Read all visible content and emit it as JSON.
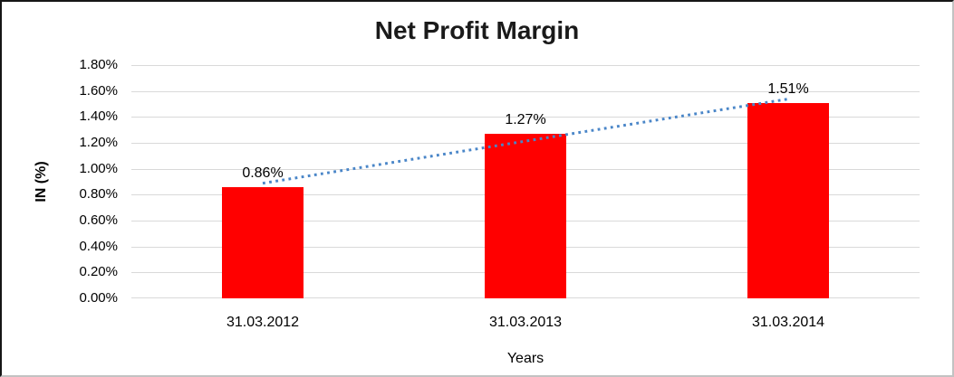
{
  "chart_data": {
    "type": "bar",
    "title": "Net Profit Margin",
    "categories": [
      "31.03.2012",
      "31.03.2013",
      "31.03.2014"
    ],
    "values": [
      0.86,
      1.27,
      1.51
    ],
    "data_labels": [
      "0.86%",
      "1.27%",
      "1.51%"
    ],
    "xlabel": "Years",
    "ylabel": "IN (%)",
    "ylim": [
      0,
      1.8
    ],
    "ytick_step": 0.2,
    "ytick_labels": [
      "1.80%",
      "1.60%",
      "1.40%",
      "1.20%",
      "1.00%",
      "0.80%",
      "0.60%",
      "0.40%",
      "0.20%",
      "0.00%"
    ],
    "grid": true,
    "legend": "none",
    "bar_color": "#ff0000",
    "trendline": {
      "type": "linear",
      "style": "dotted",
      "color": "#4a86c8"
    },
    "colors": {
      "gridline": "#d9d9d9",
      "title_text": "#1a1a1a",
      "axis_text": "#000000",
      "frame_dark": "#161616",
      "frame_light": "#c2c2c2",
      "background": "#ffffff"
    }
  }
}
